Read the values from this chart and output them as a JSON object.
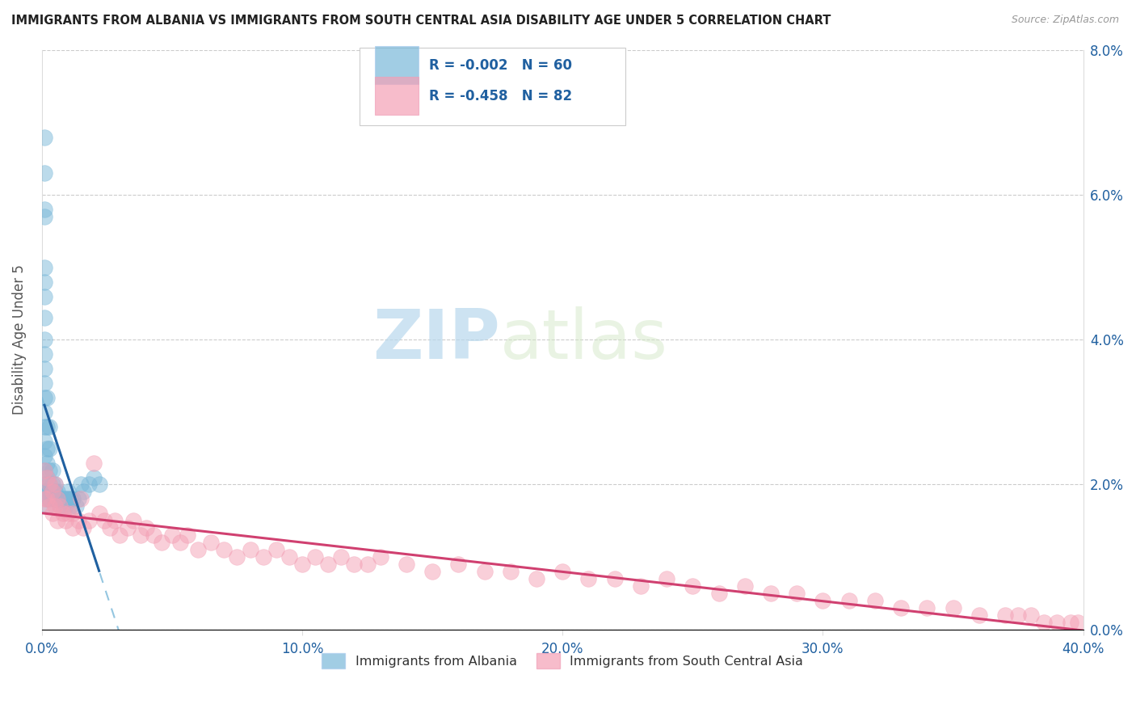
{
  "title": "IMMIGRANTS FROM ALBANIA VS IMMIGRANTS FROM SOUTH CENTRAL ASIA DISABILITY AGE UNDER 5 CORRELATION CHART",
  "source": "Source: ZipAtlas.com",
  "ylabel": "Disability Age Under 5",
  "xlim": [
    0.0,
    0.4
  ],
  "ylim": [
    0.0,
    0.08
  ],
  "xticks": [
    0.0,
    0.1,
    0.2,
    0.3,
    0.4
  ],
  "yticks": [
    0.0,
    0.02,
    0.04,
    0.06,
    0.08
  ],
  "xticklabels": [
    "0.0%",
    "10.0%",
    "20.0%",
    "30.0%",
    "40.0%"
  ],
  "yticklabels": [
    "0.0%",
    "2.0%",
    "4.0%",
    "6.0%",
    "8.0%"
  ],
  "albania_color": "#7ab8d9",
  "sca_color": "#f4a0b5",
  "albania_R": -0.002,
  "albania_N": 60,
  "sca_R": -0.458,
  "sca_N": 82,
  "albania_line_color": "#2060a0",
  "sca_line_color": "#d04070",
  "albania_dash_color": "#7ab8d9",
  "watermark_zip": "ZIP",
  "watermark_atlas": "atlas",
  "legend_label_albania": "Immigrants from Albania",
  "legend_label_sca": "Immigrants from South Central Asia",
  "legend_text_color": "#2060a0",
  "albania_x": [
    0.001,
    0.001,
    0.001,
    0.001,
    0.001,
    0.001,
    0.001,
    0.001,
    0.001,
    0.001,
    0.001,
    0.001,
    0.001,
    0.001,
    0.001,
    0.001,
    0.001,
    0.001,
    0.001,
    0.001,
    0.002,
    0.002,
    0.002,
    0.002,
    0.002,
    0.002,
    0.002,
    0.002,
    0.003,
    0.003,
    0.003,
    0.003,
    0.003,
    0.003,
    0.004,
    0.004,
    0.004,
    0.005,
    0.005,
    0.005,
    0.006,
    0.006,
    0.007,
    0.007,
    0.008,
    0.008,
    0.009,
    0.009,
    0.01,
    0.01,
    0.011,
    0.011,
    0.012,
    0.013,
    0.014,
    0.015,
    0.016,
    0.018,
    0.02,
    0.022
  ],
  "albania_y": [
    0.068,
    0.063,
    0.058,
    0.057,
    0.05,
    0.048,
    0.046,
    0.043,
    0.04,
    0.038,
    0.036,
    0.034,
    0.032,
    0.03,
    0.028,
    0.026,
    0.024,
    0.022,
    0.02,
    0.019,
    0.032,
    0.028,
    0.025,
    0.023,
    0.021,
    0.019,
    0.018,
    0.017,
    0.028,
    0.025,
    0.022,
    0.02,
    0.019,
    0.018,
    0.022,
    0.02,
    0.019,
    0.02,
    0.019,
    0.018,
    0.019,
    0.018,
    0.018,
    0.017,
    0.018,
    0.017,
    0.018,
    0.017,
    0.019,
    0.018,
    0.018,
    0.017,
    0.018,
    0.017,
    0.018,
    0.02,
    0.019,
    0.02,
    0.021,
    0.02
  ],
  "sca_x": [
    0.001,
    0.001,
    0.002,
    0.002,
    0.003,
    0.003,
    0.004,
    0.004,
    0.005,
    0.005,
    0.006,
    0.006,
    0.007,
    0.008,
    0.009,
    0.01,
    0.012,
    0.012,
    0.014,
    0.015,
    0.016,
    0.018,
    0.02,
    0.022,
    0.024,
    0.026,
    0.028,
    0.03,
    0.033,
    0.035,
    0.038,
    0.04,
    0.043,
    0.046,
    0.05,
    0.053,
    0.056,
    0.06,
    0.065,
    0.07,
    0.075,
    0.08,
    0.085,
    0.09,
    0.095,
    0.1,
    0.105,
    0.11,
    0.115,
    0.12,
    0.125,
    0.13,
    0.14,
    0.15,
    0.16,
    0.17,
    0.18,
    0.19,
    0.2,
    0.21,
    0.22,
    0.23,
    0.24,
    0.25,
    0.26,
    0.27,
    0.28,
    0.29,
    0.3,
    0.31,
    0.32,
    0.33,
    0.34,
    0.35,
    0.36,
    0.37,
    0.375,
    0.38,
    0.385,
    0.39,
    0.395,
    0.398
  ],
  "sca_y": [
    0.022,
    0.018,
    0.021,
    0.018,
    0.02,
    0.017,
    0.019,
    0.016,
    0.02,
    0.017,
    0.018,
    0.015,
    0.017,
    0.016,
    0.015,
    0.016,
    0.016,
    0.014,
    0.015,
    0.018,
    0.014,
    0.015,
    0.023,
    0.016,
    0.015,
    0.014,
    0.015,
    0.013,
    0.014,
    0.015,
    0.013,
    0.014,
    0.013,
    0.012,
    0.013,
    0.012,
    0.013,
    0.011,
    0.012,
    0.011,
    0.01,
    0.011,
    0.01,
    0.011,
    0.01,
    0.009,
    0.01,
    0.009,
    0.01,
    0.009,
    0.009,
    0.01,
    0.009,
    0.008,
    0.009,
    0.008,
    0.008,
    0.007,
    0.008,
    0.007,
    0.007,
    0.006,
    0.007,
    0.006,
    0.005,
    0.006,
    0.005,
    0.005,
    0.004,
    0.004,
    0.004,
    0.003,
    0.003,
    0.003,
    0.002,
    0.002,
    0.002,
    0.002,
    0.001,
    0.001,
    0.001,
    0.001
  ]
}
